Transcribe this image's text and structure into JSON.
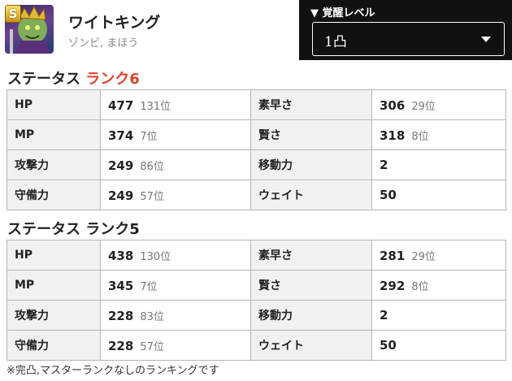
{
  "monster": {
    "icon": "zombie-king-portrait-icon",
    "rank_badge": "S",
    "name": "ワイトキング",
    "type": "ゾンビ, まほう"
  },
  "awaken": {
    "label": "▼ 覚醒レベル",
    "selected": "1凸"
  },
  "sections": [
    {
      "title_prefix": "ステータス ",
      "title_rank": "ランク6",
      "highlight": true,
      "rows": [
        {
          "l1": "HP",
          "v1": "477",
          "r1": "131位",
          "l2": "素早さ",
          "v2": "306",
          "r2": "29位"
        },
        {
          "l1": "MP",
          "v1": "374",
          "r1": "7位",
          "l2": "賢さ",
          "v2": "318",
          "r2": "8位"
        },
        {
          "l1": "攻撃力",
          "v1": "249",
          "r1": "86位",
          "l2": "移動力",
          "v2": "2",
          "r2": ""
        },
        {
          "l1": "守備力",
          "v1": "249",
          "r1": "57位",
          "l2": "ウェイト",
          "v2": "50",
          "r2": ""
        }
      ]
    },
    {
      "title_prefix": "ステータス ",
      "title_rank": "ランク5",
      "highlight": false,
      "rows": [
        {
          "l1": "HP",
          "v1": "438",
          "r1": "130位",
          "l2": "素早さ",
          "v2": "281",
          "r2": "29位"
        },
        {
          "l1": "MP",
          "v1": "345",
          "r1": "7位",
          "l2": "賢さ",
          "v2": "292",
          "r2": "8位"
        },
        {
          "l1": "攻撃力",
          "v1": "228",
          "r1": "83位",
          "l2": "移動力",
          "v2": "2",
          "r2": ""
        },
        {
          "l1": "守備力",
          "v1": "228",
          "r1": "57位",
          "l2": "ウェイト",
          "v2": "50",
          "r2": ""
        }
      ]
    }
  ],
  "footnote": "※完凸,マスターランクなしのランキングです",
  "colors": {
    "rank_highlight": "#d9442b",
    "awaken_panel": "#111111",
    "label_bg": "#f1f1f1"
  }
}
